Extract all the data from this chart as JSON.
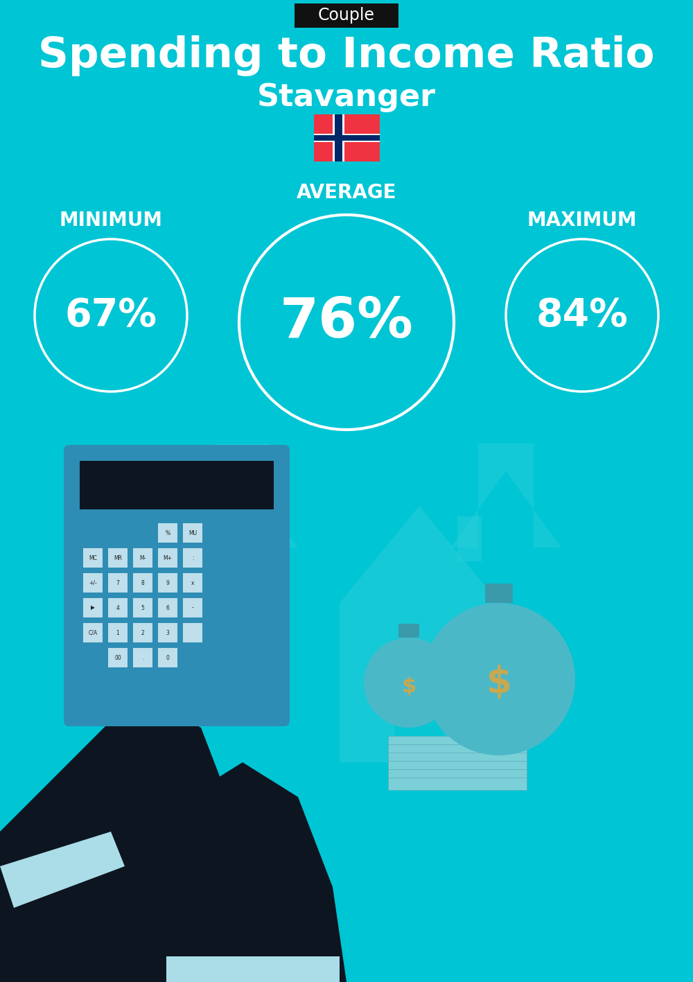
{
  "title": "Spending to Income Ratio",
  "subtitle": "Stavanger",
  "tag": "Couple",
  "bg_color": "#00C5D4",
  "min_label": "MINIMUM",
  "avg_label": "AVERAGE",
  "max_label": "MAXIMUM",
  "min_value": "67%",
  "avg_value": "76%",
  "max_value": "84%",
  "text_color": "white",
  "tag_bg": "#111111",
  "tag_text": "white",
  "title_fontsize": 44,
  "subtitle_fontsize": 32,
  "label_fontsize": 20,
  "value_fontsize_small": 40,
  "value_fontsize_large": 58,
  "flag_red": "#EF3340",
  "flag_blue": "#002868",
  "arrow_color": "#29CDD8",
  "house_color": "#29CDD8",
  "calc_body_color": "#2E8DB5",
  "calc_screen_color": "#0D1520",
  "hand_color": "#0D1520",
  "suit_color": "#0D1520",
  "cuff_color": "#AADDE8",
  "money_bag_color": "#4BB8C8",
  "money_gold": "#C8A850",
  "cash_color": "#7BD0D8"
}
